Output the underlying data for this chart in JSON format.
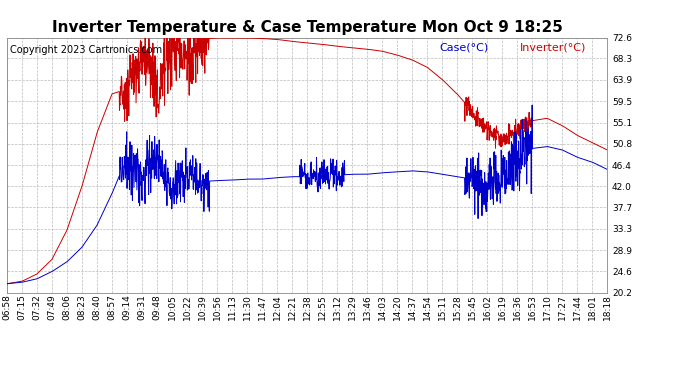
{
  "title": "Inverter Temperature & Case Temperature Mon Oct 9 18:25",
  "copyright": "Copyright 2023 Cartronics.com",
  "legend_case": "Case(°C)",
  "legend_inverter": "Inverter(°C)",
  "case_color": "#0000cc",
  "inverter_color": "#cc0000",
  "background_color": "#ffffff",
  "plot_bg_color": "#ffffff",
  "grid_color": "#bbbbbb",
  "ylim": [
    20.2,
    72.6
  ],
  "yticks": [
    20.2,
    24.6,
    28.9,
    33.3,
    37.7,
    42.0,
    46.4,
    50.8,
    55.1,
    59.5,
    63.9,
    68.3,
    72.6
  ],
  "title_fontsize": 11,
  "tick_fontsize": 6.5,
  "copyright_fontsize": 7,
  "legend_fontsize": 8,
  "xtick_labels": [
    "06:58",
    "07:15",
    "07:32",
    "07:49",
    "08:06",
    "08:23",
    "08:40",
    "08:57",
    "09:14",
    "09:31",
    "09:48",
    "10:05",
    "10:22",
    "10:39",
    "10:56",
    "11:13",
    "11:30",
    "11:47",
    "12:04",
    "12:21",
    "12:38",
    "12:55",
    "13:12",
    "13:29",
    "13:46",
    "14:03",
    "14:20",
    "14:37",
    "14:54",
    "15:11",
    "15:28",
    "15:45",
    "16:02",
    "16:19",
    "16:36",
    "16:53",
    "17:10",
    "17:27",
    "17:44",
    "18:01",
    "18:18"
  ]
}
